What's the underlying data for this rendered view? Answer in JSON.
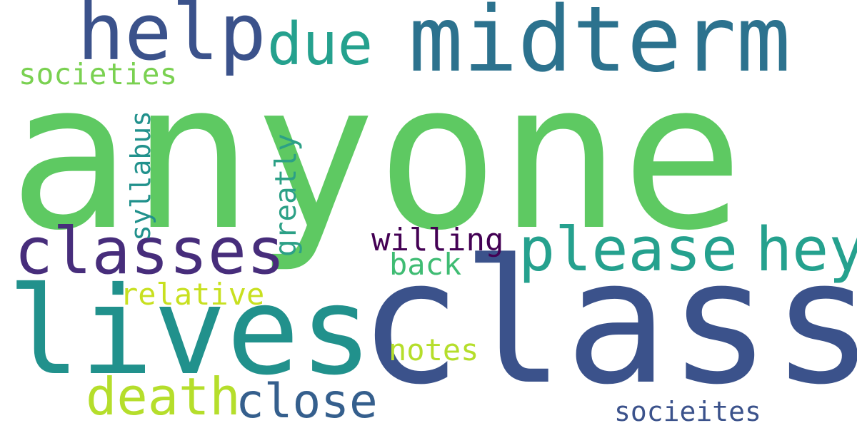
{
  "words": [
    {
      "text": "anyone",
      "color": "#5ec962"
    },
    {
      "text": "class",
      "color": "#3b528b"
    },
    {
      "text": "lives",
      "color": "#21918c"
    },
    {
      "text": "midterm",
      "color": "#2c728e"
    },
    {
      "text": "help",
      "color": "#3b528b"
    },
    {
      "text": "due",
      "color": "#25a18e"
    },
    {
      "text": "classes",
      "color": "#472d7b"
    },
    {
      "text": "please",
      "color": "#25a18e"
    },
    {
      "text": "hey",
      "color": "#25a18e"
    },
    {
      "text": "death",
      "color": "#b5de2b"
    },
    {
      "text": "close",
      "color": "#355f8d"
    },
    {
      "text": "societies",
      "color": "#7ad151"
    },
    {
      "text": "syllabus",
      "color": "#21918c"
    },
    {
      "text": "greatly",
      "color": "#2ca086"
    },
    {
      "text": "willing",
      "color": "#440154"
    },
    {
      "text": "back",
      "color": "#3fbc73"
    },
    {
      "text": "relative",
      "color": "#c8e020"
    },
    {
      "text": "notes",
      "color": "#b5de2b"
    },
    {
      "text": "socieites",
      "color": "#3b528b"
    }
  ]
}
